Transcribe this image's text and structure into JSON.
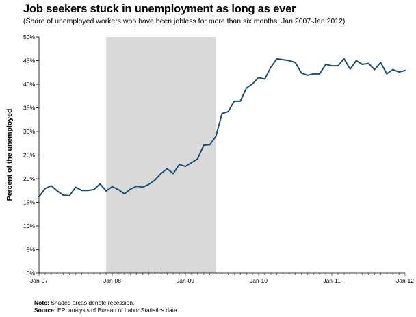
{
  "title": "Job seekers stuck in unemployment as long as ever",
  "subtitle": "(Share of unemployed workers who have been jobless for more than six months, Jan 2007-Jan 2012)",
  "notes": {
    "note_label": "Note:",
    "note_text": "Shaded areas denote recession.",
    "source_label": "Source:",
    "source_text": "EPI analysis of Bureau of Labor Statistics data"
  },
  "colors": {
    "line": "#1b4f72",
    "recession_shade": "#d9d9d9",
    "axis": "#000000"
  },
  "chart_data": {
    "type": "line",
    "title": "Job seekers stuck in unemployment as long as ever",
    "subtitle": "(Share of unemployed workers who have been jobless for more than six months, Jan 2007-Jan 2012)",
    "xlabel": "",
    "ylabel": "Percent of the unemployed",
    "ylim": [
      0,
      50
    ],
    "yticks": [
      0,
      5,
      10,
      15,
      20,
      25,
      30,
      35,
      40,
      45,
      50
    ],
    "ytick_labels": [
      "0%",
      "5%",
      "10%",
      "15%",
      "20%",
      "25%",
      "30%",
      "35%",
      "40%",
      "45%",
      "50%"
    ],
    "xticks": [
      "2007-01",
      "2008-01",
      "2009-01",
      "2010-01",
      "2011-01",
      "2012-01"
    ],
    "xtick_labels": [
      "Jan-07",
      "Jan-08",
      "Jan-09",
      "Jan-10",
      "Jan-11",
      "Jan-12"
    ],
    "xlim": [
      "2007-01",
      "2012-01"
    ],
    "grid": false,
    "legend": "none",
    "recession": {
      "start": "2007-12",
      "end": "2009-06"
    },
    "series": [
      {
        "x": [
          "2007-01",
          "2007-02",
          "2007-03",
          "2007-04",
          "2007-05",
          "2007-06",
          "2007-07",
          "2007-08",
          "2007-09",
          "2007-10",
          "2007-11",
          "2007-12",
          "2008-01",
          "2008-02",
          "2008-03",
          "2008-04",
          "2008-05",
          "2008-06",
          "2008-07",
          "2008-08",
          "2008-09",
          "2008-10",
          "2008-11",
          "2008-12",
          "2009-01",
          "2009-02",
          "2009-03",
          "2009-04",
          "2009-05",
          "2009-06",
          "2009-07",
          "2009-08",
          "2009-09",
          "2009-10",
          "2009-11",
          "2009-12",
          "2010-01",
          "2010-02",
          "2010-03",
          "2010-04",
          "2010-05",
          "2010-06",
          "2010-07",
          "2010-08",
          "2010-09",
          "2010-10",
          "2010-11",
          "2010-12",
          "2011-01",
          "2011-02",
          "2011-03",
          "2011-04",
          "2011-05",
          "2011-06",
          "2011-07",
          "2011-08",
          "2011-09",
          "2011-10",
          "2011-11",
          "2011-12",
          "2012-01"
        ],
        "values": [
          16.2,
          17.9,
          18.5,
          17.4,
          16.5,
          16.4,
          18.2,
          17.5,
          17.5,
          17.7,
          18.9,
          17.4,
          18.3,
          17.7,
          16.8,
          17.8,
          18.4,
          18.2,
          18.8,
          19.7,
          21.1,
          22.1,
          21.1,
          23.0,
          22.6,
          23.4,
          24.2,
          27.1,
          27.2,
          29.0,
          33.8,
          34.2,
          36.4,
          36.4,
          39.2,
          40.1,
          41.4,
          41.1,
          43.6,
          45.4,
          45.2,
          45.0,
          44.6,
          42.4,
          41.9,
          42.2,
          42.2,
          44.2,
          43.9,
          43.9,
          45.4,
          43.2,
          45.0,
          44.2,
          44.4,
          43.1,
          44.6,
          42.2,
          43.1,
          42.6,
          42.9
        ]
      }
    ]
  }
}
